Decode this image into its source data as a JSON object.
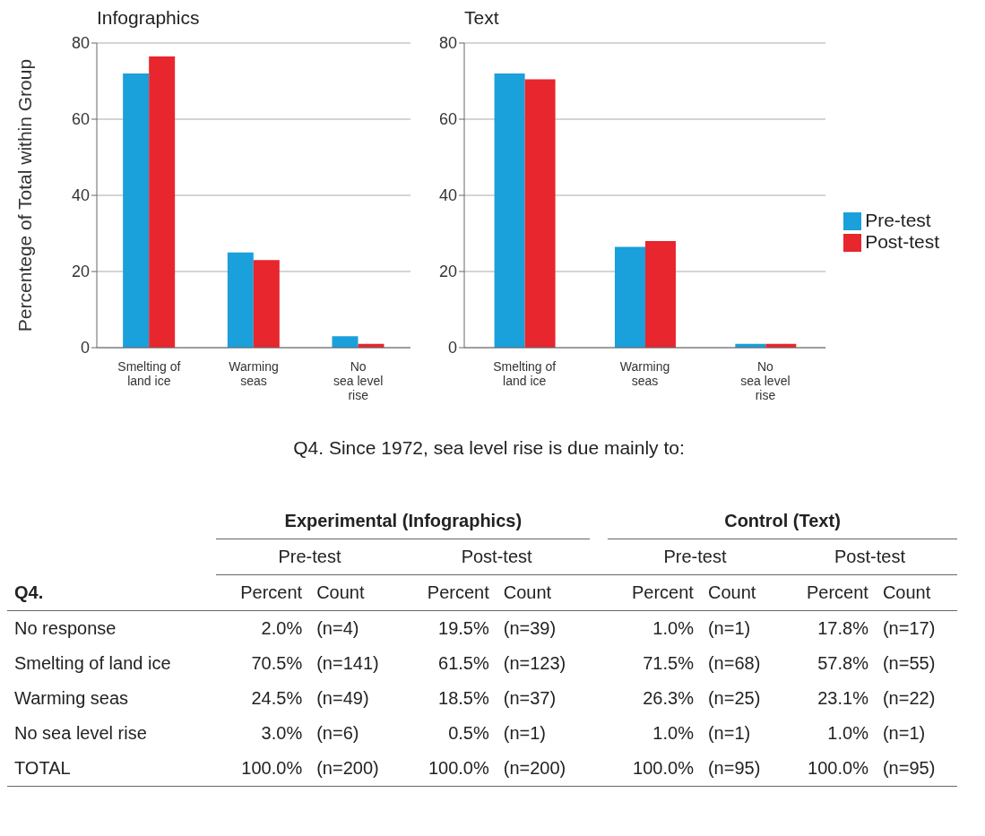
{
  "chart_data": [
    {
      "type": "bar",
      "title": "Infographics",
      "ylabel": "Percentege of Total within Group",
      "categories": [
        "Smelting of\nland ice",
        "Warming\nseas",
        "No\nsea level\nrise"
      ],
      "series": [
        {
          "color": "#1aa0db",
          "values": [
            72,
            25,
            3
          ]
        },
        {
          "color": "#e8262e",
          "values": [
            76.5,
            23,
            1
          ]
        }
      ],
      "ylim": [
        0,
        80
      ],
      "yticks": [
        0,
        20,
        40,
        60,
        80
      ],
      "grid": "y",
      "legend": false
    },
    {
      "type": "bar",
      "title": "Text",
      "categories": [
        "Smelting of\nland ice",
        "Warming\nseas",
        "No\nsea level\nrise"
      ],
      "series": [
        {
          "name": "Pre-test",
          "color": "#1aa0db",
          "values": [
            72,
            26.5,
            1
          ]
        },
        {
          "name": "Post-test",
          "color": "#e8262e",
          "values": [
            70.5,
            28,
            1
          ]
        }
      ],
      "ylim": [
        0,
        80
      ],
      "yticks": [
        0,
        20,
        40,
        60,
        80
      ],
      "grid": "y",
      "legend": "right"
    },
    {
      "type": "other",
      "title": "Q4. Since 1972, sea level rise is due mainly to:",
      "annotations": [
        "Experimental (Infographics)",
        "Control (Text)",
        "Pre-test",
        "Post-test",
        "Pre-test",
        "Post-test",
        "Q4."
      ],
      "categories": [
        "No response",
        "Smelting of land ice",
        "Warming seas",
        "No sea level rise",
        "TOTAL"
      ],
      "series": [
        {
          "name": "Percent",
          "values": [
            2.0,
            70.5,
            24.5,
            3.0,
            100.0
          ],
          "value_labels": [
            "2.0%",
            "70.5%",
            "24.5%",
            "3.0%",
            "100.0%"
          ]
        },
        {
          "name": "Count",
          "values": [
            4,
            141,
            49,
            6,
            200
          ],
          "value_labels": [
            "(n=4)",
            "(n=141)",
            "(n=49)",
            "(n=6)",
            "(n=200)"
          ]
        },
        {
          "name": "Percent",
          "values": [
            19.5,
            61.5,
            18.5,
            0.5,
            100.0
          ],
          "value_labels": [
            "19.5%",
            "61.5%",
            "18.5%",
            "0.5%",
            "100.0%"
          ]
        },
        {
          "name": "Count",
          "values": [
            39,
            123,
            37,
            1,
            200
          ],
          "value_labels": [
            "(n=39)",
            "(n=123)",
            "(n=37)",
            "(n=1)",
            "(n=200)"
          ]
        },
        {
          "name": "Percent",
          "values": [
            1.0,
            71.5,
            26.3,
            1.0,
            100.0
          ],
          "value_labels": [
            "1.0%",
            "71.5%",
            "26.3%",
            "1.0%",
            "100.0%"
          ]
        },
        {
          "name": "Count",
          "values": [
            1,
            68,
            25,
            1,
            95
          ],
          "value_labels": [
            "(n=1)",
            "(n=68)",
            "(n=25)",
            "(n=1)",
            "(n=95)"
          ]
        },
        {
          "name": "Percent",
          "values": [
            17.8,
            57.8,
            23.1,
            1.0,
            100.0
          ],
          "value_labels": [
            "17.8%",
            "57.8%",
            "23.1%",
            "1.0%",
            "100.0%"
          ]
        },
        {
          "name": "Count",
          "values": [
            17,
            55,
            22,
            1,
            95
          ],
          "value_labels": [
            "(n=17)",
            "(n=55)",
            "(n=22)",
            "(n=1)",
            "(n=95)"
          ]
        }
      ]
    }
  ]
}
